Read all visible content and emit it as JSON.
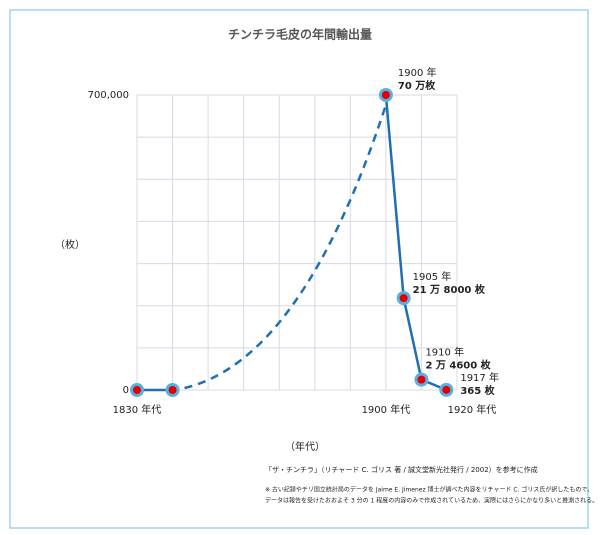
{
  "chart_data": {
    "type": "line",
    "title": "チンチラ毛皮の年間輸出量",
    "y_label": "（枚）",
    "x_label": "（年代）",
    "source": "「ザ・チンチラ」（リチャード C. ゴリス 著 / 誠文堂新光社発行 / 2002）を参考に作成",
    "notes": [
      "※ 古い記録やチリ国立統計局のデータを Jaime E. Jimenez 博士が調べた内容をリチャード C. ゴリス氏が訳したもので、",
      "データは報告を受けたおおよそ 3 分の 1 程度の内容のみで作成されているため、実際にはさらにかなり多いと推測される。"
    ],
    "x": [
      1830,
      1840,
      1900,
      1905,
      1910,
      1917
    ],
    "series": [
      {
        "name": "輸出量",
        "color": "#1f6fb5",
        "marker_color": "#5aaee0",
        "point_color": "#e00000",
        "values": [
          0,
          0,
          700000,
          218000,
          24600,
          365
        ],
        "labels": [
          null,
          null,
          {
            "year": "1900 年",
            "amount": "70 万枚"
          },
          {
            "year": "1905 年",
            "amount": "21 万 8000 枚"
          },
          {
            "year": "1910 年",
            "amount": "2 万 4600 枚"
          },
          {
            "year": "1917 年",
            "amount": "365 枚"
          }
        ]
      }
    ],
    "estimated_between": [
      1,
      2
    ],
    "xlim": [
      1830,
      1920
    ],
    "xticks": [
      {
        "value": 1830,
        "label": "1830 年代"
      },
      {
        "value": 1900,
        "label": "1900 年代"
      },
      {
        "value": 1920,
        "label": "1920 年代"
      }
    ],
    "xgrid": [
      1830,
      1840,
      1850,
      1860,
      1870,
      1880,
      1890,
      1900,
      1910,
      1920
    ],
    "ylim": [
      0,
      700000
    ],
    "yticks": [
      0,
      {
        "value": 700000,
        "label": "700,000"
      }
    ],
    "ygrid": [
      0,
      100000,
      200000,
      300000,
      400000,
      500000,
      600000,
      700000
    ],
    "grid": true
  }
}
